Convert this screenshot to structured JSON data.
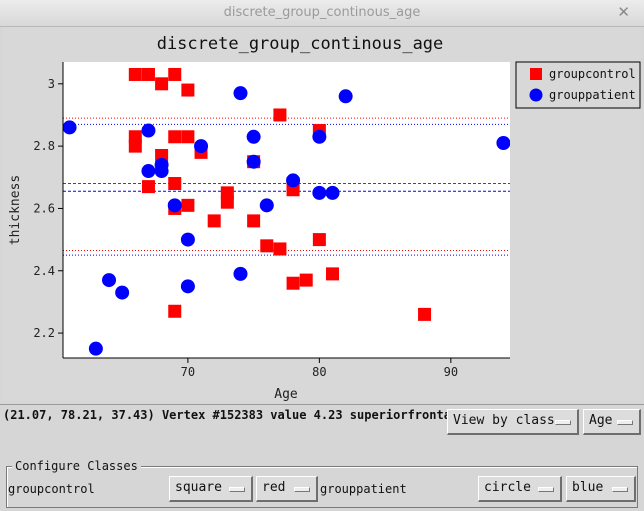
{
  "window": {
    "title": "discrete_group_continous_age",
    "close_glyph": "✕"
  },
  "chart_data": {
    "type": "scatter",
    "title": "discrete_group_continous_age",
    "xlabel": "Age",
    "ylabel": "thickness",
    "xlim": [
      60.5,
      94.5
    ],
    "ylim": [
      2.12,
      3.07
    ],
    "xticks": [
      70,
      80,
      90
    ],
    "yticks": [
      2.2,
      2.4,
      2.6,
      2.8,
      3
    ],
    "legend_position": "outside-right",
    "series": [
      {
        "name": "groupcontrol",
        "marker": "square",
        "color": "#ff0000",
        "points": [
          [
            66,
            3.03
          ],
          [
            67,
            3.03
          ],
          [
            69,
            3.03
          ],
          [
            68,
            3.0
          ],
          [
            70,
            2.98
          ],
          [
            77,
            2.9
          ],
          [
            66,
            2.83
          ],
          [
            69,
            2.83
          ],
          [
            70,
            2.83
          ],
          [
            66,
            2.8
          ],
          [
            80,
            2.85
          ],
          [
            71,
            2.78
          ],
          [
            68,
            2.77
          ],
          [
            75,
            2.75
          ],
          [
            69,
            2.68
          ],
          [
            67,
            2.67
          ],
          [
            78,
            2.68
          ],
          [
            78,
            2.66
          ],
          [
            73,
            2.65
          ],
          [
            73,
            2.62
          ],
          [
            70,
            2.61
          ],
          [
            69,
            2.6
          ],
          [
            72,
            2.56
          ],
          [
            75,
            2.56
          ],
          [
            80,
            2.5
          ],
          [
            76,
            2.48
          ],
          [
            77,
            2.47
          ],
          [
            81,
            2.39
          ],
          [
            78,
            2.36
          ],
          [
            79,
            2.37
          ],
          [
            69,
            2.27
          ],
          [
            88,
            2.26
          ]
        ]
      },
      {
        "name": "grouppatient",
        "marker": "circle",
        "color": "#0000ff",
        "points": [
          [
            61,
            2.86
          ],
          [
            67,
            2.85
          ],
          [
            74,
            2.97
          ],
          [
            82,
            2.96
          ],
          [
            94,
            2.81
          ],
          [
            71,
            2.8
          ],
          [
            75,
            2.83
          ],
          [
            80,
            2.83
          ],
          [
            68,
            2.74
          ],
          [
            67,
            2.72
          ],
          [
            68,
            2.72
          ],
          [
            75,
            2.75
          ],
          [
            78,
            2.69
          ],
          [
            80,
            2.65
          ],
          [
            81,
            2.65
          ],
          [
            69,
            2.61
          ],
          [
            76,
            2.61
          ],
          [
            70,
            2.5
          ],
          [
            64,
            2.37
          ],
          [
            65,
            2.33
          ],
          [
            74,
            2.39
          ],
          [
            70,
            2.35
          ],
          [
            63,
            2.15
          ]
        ]
      }
    ],
    "reference_lines": [
      {
        "series": "groupcontrol",
        "style": "dashed",
        "y": 2.68
      },
      {
        "series": "groupcontrol",
        "style": "dotted",
        "y": 2.89
      },
      {
        "series": "groupcontrol",
        "style": "dotted",
        "y": 2.465
      },
      {
        "series": "grouppatient",
        "style": "dashed",
        "y": 2.655
      },
      {
        "series": "grouppatient",
        "style": "dotted",
        "y": 2.87
      },
      {
        "series": "grouppatient",
        "style": "dotted",
        "y": 2.45
      }
    ]
  },
  "status": {
    "text": "(21.07, 78.21, 37.43) Vertex #152383 value 4.23 superiorfrontal"
  },
  "view_controls": {
    "view_by": "View by class",
    "variable": "Age"
  },
  "configure": {
    "title": "Configure Classes",
    "classes": [
      {
        "name": "groupcontrol",
        "marker": "square",
        "color": "red"
      },
      {
        "name": "grouppatient",
        "marker": "circle",
        "color": "blue"
      }
    ]
  }
}
